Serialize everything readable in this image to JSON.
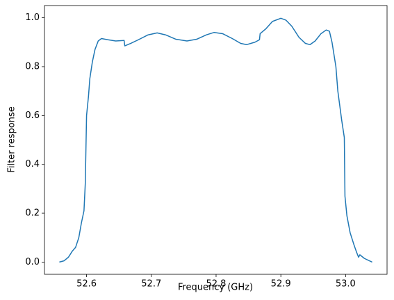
{
  "chart_data": {
    "type": "line",
    "xlabel": "Frequency (GHz)",
    "ylabel": "Filter response",
    "x": [
      52.558,
      52.565,
      52.572,
      52.578,
      52.583,
      52.588,
      52.592,
      52.596,
      52.598,
      52.6,
      52.603,
      52.605,
      52.609,
      52.613,
      52.618,
      52.623,
      52.633,
      52.645,
      52.658,
      52.659,
      52.668,
      52.68,
      52.695,
      52.709,
      52.722,
      52.738,
      52.755,
      52.77,
      52.785,
      52.797,
      52.81,
      52.825,
      52.838,
      52.847,
      52.86,
      52.867,
      52.868,
      52.877,
      52.887,
      52.9,
      52.908,
      52.917,
      52.928,
      52.938,
      52.945,
      52.953,
      52.962,
      52.97,
      52.975,
      52.979,
      52.985,
      52.988,
      52.994,
      52.998,
      52.999,
      53.002,
      53.007,
      53.013,
      53.017,
      53.02,
      53.022,
      53.029,
      53.041
    ],
    "series": [
      {
        "color": "#1f77b4",
        "values": [
          0,
          0.005,
          0.02,
          0.045,
          0.06,
          0.1,
          0.16,
          0.21,
          0.32,
          0.6,
          0.68,
          0.75,
          0.82,
          0.87,
          0.905,
          0.915,
          0.91,
          0.905,
          0.907,
          0.885,
          0.895,
          0.91,
          0.93,
          0.938,
          0.93,
          0.912,
          0.905,
          0.912,
          0.93,
          0.94,
          0.935,
          0.915,
          0.895,
          0.89,
          0.9,
          0.91,
          0.935,
          0.955,
          0.985,
          0.998,
          0.99,
          0.965,
          0.92,
          0.895,
          0.89,
          0.905,
          0.935,
          0.95,
          0.945,
          0.9,
          0.8,
          0.7,
          0.58,
          0.51,
          0.27,
          0.19,
          0.12,
          0.07,
          0.04,
          0.02,
          0.03,
          0.015,
          0
        ]
      }
    ],
    "xlim": [
      52.535,
      53.064
    ],
    "xticks": [
      52.6,
      52.7,
      52.8,
      52.9,
      {
        "value": 53.0,
        "label": "53.0"
      }
    ],
    "ylim": [
      -0.05,
      1.05
    ],
    "yticks": [
      {
        "value": 0.0,
        "label": "0.0"
      },
      0.2,
      0.4,
      0.6,
      0.8,
      {
        "value": 1.0,
        "label": "1.0"
      }
    ]
  }
}
